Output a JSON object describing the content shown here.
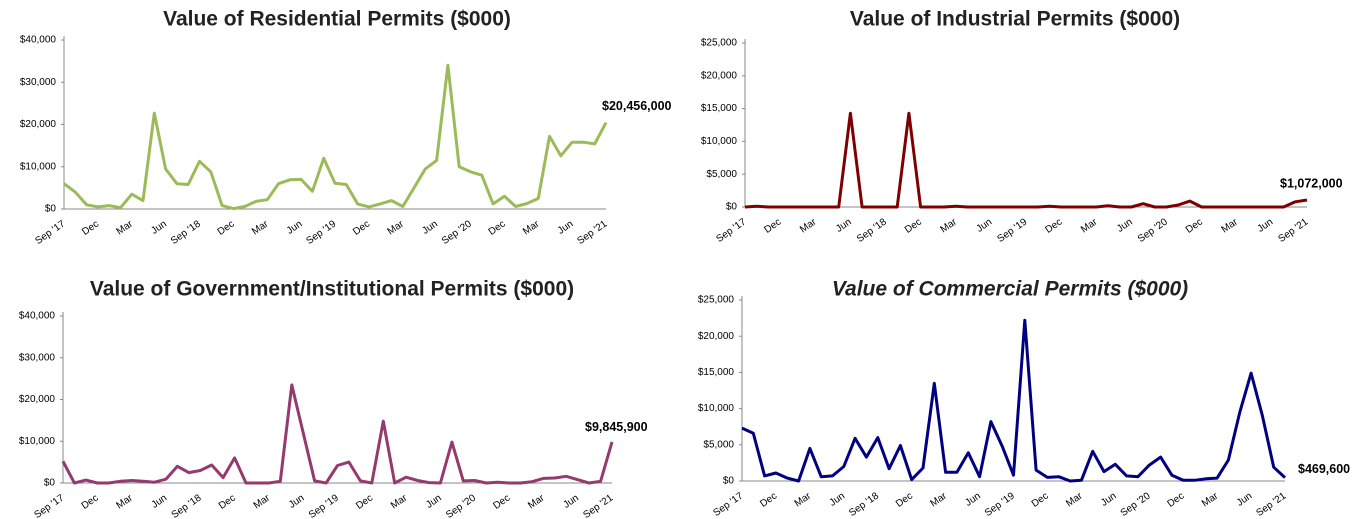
{
  "chart_data": [
    {
      "type": "line",
      "title": "Value of Residential Permits ($000)",
      "color": "#9bbb59",
      "categories": [
        "Sep '17",
        null,
        null,
        "Dec",
        null,
        null,
        "Mar",
        null,
        null,
        "Jun",
        null,
        null,
        "Sep '18",
        null,
        null,
        "Dec",
        null,
        null,
        "Mar",
        null,
        null,
        "Jun",
        null,
        null,
        "Sep '19",
        null,
        null,
        "Dec",
        null,
        null,
        "Mar",
        null,
        null,
        "Jun",
        null,
        null,
        "Sep '20",
        null,
        null,
        "Dec",
        null,
        null,
        "Mar",
        null,
        null,
        "Jun",
        null,
        null,
        "Sep '21"
      ],
      "values": [
        6000,
        4000,
        1000,
        500,
        800,
        300,
        3500,
        2000,
        22700,
        9500,
        6000,
        5800,
        11300,
        8800,
        800,
        100,
        600,
        1800,
        2200,
        6000,
        6900,
        7000,
        4200,
        12000,
        6100,
        5800,
        1200,
        500,
        1200,
        2000,
        600,
        5000,
        9500,
        11500,
        34000,
        10000,
        8800,
        8000,
        1200,
        3000,
        600,
        1300,
        2500,
        17200,
        12600,
        15800,
        15800,
        15400,
        20456
      ],
      "value_labels": [
        null,
        null,
        null,
        null,
        null,
        null,
        null,
        null,
        null,
        null,
        null,
        null,
        null,
        null,
        null,
        null,
        null,
        null,
        null,
        null,
        null,
        null,
        null,
        null,
        null,
        null,
        null,
        null,
        null,
        null,
        null,
        null,
        null,
        null,
        null,
        null,
        null,
        null,
        null,
        null,
        null,
        null,
        null,
        null,
        null,
        null,
        null,
        null,
        "$20,456,000"
      ],
      "ylim": [
        0,
        40000
      ],
      "yticks": [
        {
          "value": 0,
          "label": "$0"
        },
        {
          "value": 10000,
          "label": "$10,000"
        },
        {
          "value": 20000,
          "label": "$20,000"
        },
        {
          "value": 30000,
          "label": "$30,000"
        },
        {
          "value": 40000,
          "label": "$40,000"
        }
      ]
    },
    {
      "type": "line",
      "title": "Value of Industrial Permits ($000)",
      "color": "#7f0000",
      "categories": [
        "Sep '17",
        null,
        null,
        "Dec",
        null,
        null,
        "Mar",
        null,
        null,
        "Jun",
        null,
        null,
        "Sep '18",
        null,
        null,
        "Dec",
        null,
        null,
        "Mar",
        null,
        null,
        "Jun",
        null,
        null,
        "Sep '19",
        null,
        null,
        "Dec",
        null,
        null,
        "Mar",
        null,
        null,
        "Jun",
        null,
        null,
        "Sep '20",
        null,
        null,
        "Dec",
        null,
        null,
        "Mar",
        null,
        null,
        "Jun",
        null,
        null,
        "Sep '21"
      ],
      "values": [
        0,
        100,
        0,
        0,
        0,
        0,
        0,
        0,
        0,
        14300,
        0,
        0,
        0,
        0,
        14300,
        0,
        0,
        0,
        100,
        0,
        0,
        0,
        0,
        0,
        0,
        0,
        100,
        0,
        0,
        0,
        0,
        200,
        0,
        0,
        500,
        0,
        0,
        300,
        900,
        0,
        0,
        0,
        0,
        0,
        0,
        0,
        0,
        800,
        1072
      ],
      "value_labels": [
        null,
        null,
        null,
        null,
        null,
        null,
        null,
        null,
        null,
        null,
        null,
        null,
        null,
        null,
        null,
        null,
        null,
        null,
        null,
        null,
        null,
        null,
        null,
        null,
        null,
        null,
        null,
        null,
        null,
        null,
        null,
        null,
        null,
        null,
        null,
        null,
        null,
        null,
        null,
        null,
        null,
        null,
        null,
        null,
        null,
        null,
        null,
        null,
        "$1,072,000"
      ],
      "ylim": [
        0,
        25000
      ],
      "yticks": [
        {
          "value": 0,
          "label": "$0"
        },
        {
          "value": 5000,
          "label": "$5,000"
        },
        {
          "value": 10000,
          "label": "$10,000"
        },
        {
          "value": 15000,
          "label": "$15,000"
        },
        {
          "value": 20000,
          "label": "$20,000"
        },
        {
          "value": 25000,
          "label": "$25,000"
        }
      ]
    },
    {
      "type": "line",
      "title": "Value of Government/Institutional Permits ($000)",
      "color": "#953a6f",
      "categories": [
        "Sep '17",
        null,
        null,
        "Dec",
        null,
        null,
        "Mar",
        null,
        null,
        "Jun",
        null,
        null,
        "Sep '18",
        null,
        null,
        "Dec",
        null,
        null,
        "Mar",
        null,
        null,
        "Jun",
        null,
        null,
        "Sep '19",
        null,
        null,
        "Dec",
        null,
        null,
        "Mar",
        null,
        null,
        "Jun",
        null,
        null,
        "Sep '20",
        null,
        null,
        "Dec",
        null,
        null,
        "Mar",
        null,
        null,
        "Jun",
        null,
        null,
        "Sep '21"
      ],
      "values": [
        5200,
        0,
        700,
        0,
        0,
        400,
        600,
        400,
        200,
        900,
        4000,
        2500,
        3000,
        4300,
        1300,
        6000,
        0,
        0,
        0,
        400,
        23500,
        12000,
        500,
        0,
        4200,
        5000,
        500,
        0,
        14800,
        0,
        1400,
        600,
        100,
        0,
        9800,
        500,
        600,
        0,
        200,
        0,
        0,
        300,
        1100,
        1200,
        1600,
        800,
        0,
        400,
        9845.9
      ],
      "value_labels": [
        null,
        null,
        null,
        null,
        null,
        null,
        null,
        null,
        null,
        null,
        null,
        null,
        null,
        null,
        null,
        null,
        null,
        null,
        null,
        null,
        null,
        null,
        null,
        null,
        null,
        null,
        null,
        null,
        null,
        null,
        null,
        null,
        null,
        null,
        null,
        null,
        null,
        null,
        null,
        null,
        null,
        null,
        null,
        null,
        null,
        null,
        null,
        null,
        "$9,845,900"
      ],
      "ylim": [
        0,
        40000
      ],
      "yticks": [
        {
          "value": 0,
          "label": "$0"
        },
        {
          "value": 10000,
          "label": "$10,000"
        },
        {
          "value": 20000,
          "label": "$20,000"
        },
        {
          "value": 30000,
          "label": "$30,000"
        },
        {
          "value": 40000,
          "label": "$40,000"
        }
      ]
    },
    {
      "type": "line",
      "title": "Value of Commercial Permits ($000)",
      "color": "#000080",
      "title_italic": true,
      "categories": [
        "Sep '17",
        null,
        null,
        "Dec",
        null,
        null,
        "Mar",
        null,
        null,
        "Jun",
        null,
        null,
        "Sep '18",
        null,
        null,
        "Dec",
        null,
        null,
        "Mar",
        null,
        null,
        "Jun",
        null,
        null,
        "Sep '19",
        null,
        null,
        "Dec",
        null,
        null,
        "Mar",
        null,
        null,
        "Jun",
        null,
        null,
        "Sep '20",
        null,
        null,
        "Dec",
        null,
        null,
        "Mar",
        null,
        null,
        "Jun",
        null,
        null,
        "Sep '21"
      ],
      "values": [
        7300,
        6600,
        700,
        1100,
        400,
        0,
        4500,
        600,
        700,
        2000,
        5900,
        3300,
        6000,
        1700,
        4900,
        200,
        1800,
        13500,
        1200,
        1200,
        3900,
        600,
        8200,
        4800,
        800,
        22200,
        1500,
        500,
        600,
        0,
        100,
        4100,
        1300,
        2300,
        700,
        600,
        2200,
        3300,
        800,
        100,
        100,
        300,
        400,
        2900,
        9500,
        14900,
        9000,
        1900,
        469.6
      ],
      "value_labels": [
        null,
        null,
        null,
        null,
        null,
        null,
        null,
        null,
        null,
        null,
        null,
        null,
        null,
        null,
        null,
        null,
        null,
        null,
        null,
        null,
        null,
        null,
        null,
        null,
        null,
        null,
        null,
        null,
        null,
        null,
        null,
        null,
        null,
        null,
        null,
        null,
        null,
        null,
        null,
        null,
        null,
        null,
        null,
        null,
        null,
        null,
        null,
        null,
        "$469,600"
      ],
      "ylim": [
        0,
        25000
      ],
      "yticks": [
        {
          "value": 0,
          "label": "$0"
        },
        {
          "value": 5000,
          "label": "$5,000"
        },
        {
          "value": 10000,
          "label": "$10,000"
        },
        {
          "value": 15000,
          "label": "$15,000"
        },
        {
          "value": 20000,
          "label": "$20,000"
        },
        {
          "value": 25000,
          "label": "$25,000"
        }
      ]
    }
  ]
}
